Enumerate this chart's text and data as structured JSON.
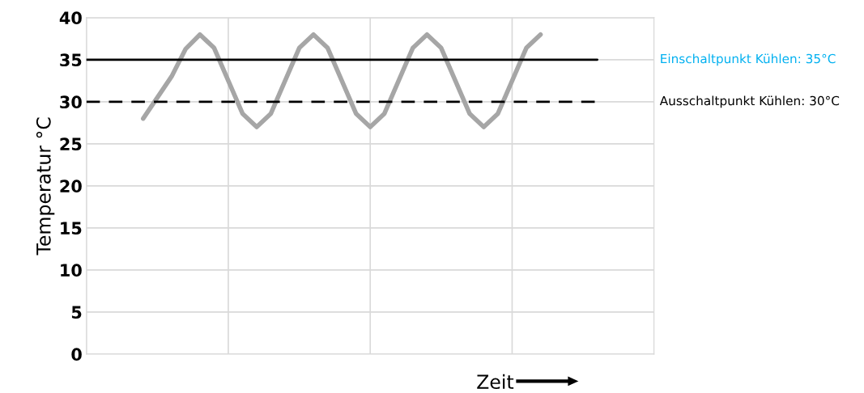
{
  "chart_data": {
    "type": "line",
    "xlabel": "Zeit",
    "ylabel": "Temperatur °C",
    "ylim": [
      0,
      40
    ],
    "yticks": [
      0,
      5,
      10,
      15,
      20,
      25,
      30,
      35,
      40
    ],
    "tick_labels": "y",
    "grid": true,
    "legend": false,
    "categories": [
      null,
      null,
      null,
      null,
      null,
      null,
      null,
      null,
      null,
      null,
      null,
      null,
      null,
      null,
      null,
      null,
      null,
      null,
      null,
      null,
      null,
      null,
      null,
      null,
      null,
      null,
      null,
      null,
      null,
      null,
      null,
      null,
      null,
      null,
      null,
      null,
      null,
      null,
      null,
      null,
      null
    ],
    "series": [
      {
        "color": "#a6a6a6",
        "line_style": "solid",
        "values": [
          null,
          null,
          null,
          null,
          28,
          30.5,
          33,
          36.3,
          38,
          36.4,
          32.5,
          28.6,
          27,
          28.6,
          32.5,
          36.4,
          38,
          36.4,
          32.5,
          28.6,
          27,
          28.6,
          32.5,
          36.4,
          38,
          36.4,
          32.5,
          28.6,
          27,
          28.6,
          32.5,
          36.4,
          38,
          null,
          null,
          null,
          null,
          null,
          null,
          null,
          null
        ]
      },
      {
        "name": "Einschaltpunkt Kühlen: 35°C",
        "color": "#000000",
        "line_style": "solid",
        "values": [
          35,
          35,
          35,
          35,
          35,
          35,
          35,
          35,
          35,
          35,
          35,
          35,
          35,
          35,
          35,
          35,
          35,
          35,
          35,
          35,
          35,
          35,
          35,
          35,
          35,
          35,
          35,
          35,
          35,
          35,
          35,
          35,
          35,
          35,
          35,
          35,
          35,
          null,
          null,
          null,
          null
        ]
      },
      {
        "name": "Ausschaltpunkt Kühlen: 30°C",
        "color": "#000000",
        "line_style": "dashed",
        "values": [
          30,
          30,
          30,
          30,
          30,
          30,
          30,
          30,
          30,
          30,
          30,
          30,
          30,
          30,
          30,
          30,
          30,
          30,
          30,
          30,
          30,
          30,
          30,
          30,
          30,
          30,
          30,
          30,
          30,
          30,
          30,
          30,
          30,
          30,
          30,
          30,
          30,
          null,
          null,
          null,
          null
        ]
      }
    ]
  }
}
